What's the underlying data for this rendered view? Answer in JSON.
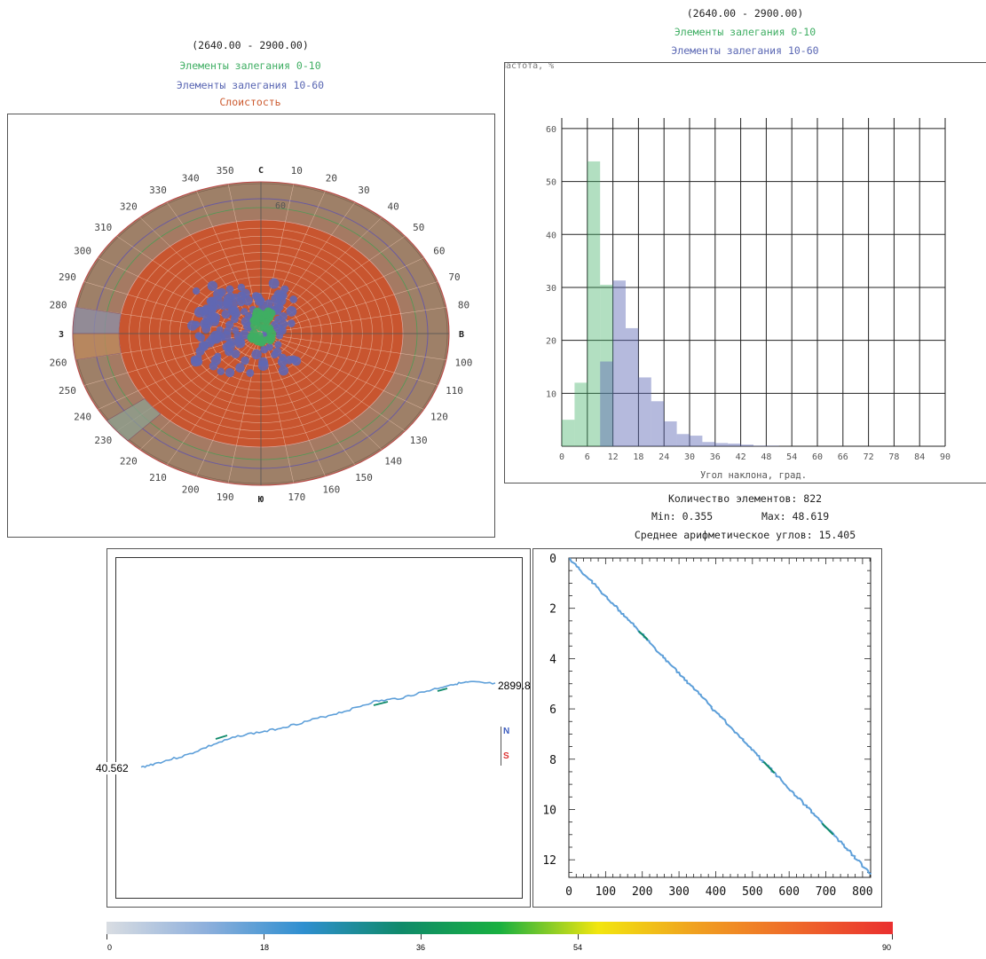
{
  "rose": {
    "range": "(2640.00 - 2900.00)",
    "legend": [
      {
        "label": "Элементы залегания 0-10",
        "color": "#3fae63"
      },
      {
        "label": "Элементы залегания 10-60",
        "color": "#5a67b3"
      },
      {
        "label": "Слоистость",
        "color": "#cc5a2f"
      }
    ],
    "compass": {
      "n": "С",
      "e": "В",
      "s": "Ю",
      "w": "З"
    },
    "dir_labels": [
      "10",
      "20",
      "30",
      "40",
      "50",
      "60",
      "70",
      "80",
      "100",
      "110",
      "120",
      "130",
      "140",
      "150",
      "160",
      "170",
      "190",
      "200",
      "210",
      "220",
      "230",
      "240",
      "250",
      "260",
      "280",
      "290",
      "300",
      "310",
      "320",
      "330",
      "340",
      "350"
    ],
    "inner_label": "60",
    "colors": {
      "outer": "#9e8068",
      "inner": "#c8552f",
      "grid": "#f1c9b4"
    }
  },
  "hist": {
    "range": "(2640.00 - 2900.00)",
    "legend": [
      {
        "label": "Элементы залегания 0-10",
        "color": "#3fae63"
      },
      {
        "label": "Элементы залегания 10-60",
        "color": "#5a67b3"
      }
    ],
    "ylabel_fragment": "Частота, %",
    "stats": {
      "count": "Количество элементов: 822",
      "min": "Min: 0.355",
      "max": "Max: 48.619",
      "mean": "Среднее арифметическое углов: 15.405"
    }
  },
  "scatter": {
    "left_label": "40.562",
    "right_label": "2899.8",
    "north": "N",
    "south": "S",
    "series_color": "#5d9fd9"
  },
  "colorbar": {
    "ticks": [
      "0",
      "18",
      "36",
      "54",
      "90"
    ],
    "stops": [
      "#d9dde2",
      "#8fb0dc",
      "#2f8fd0",
      "#0f8a6a",
      "#18b040",
      "#f2e60f",
      "#f0a020",
      "#ef6a2a",
      "#ea2f2f"
    ]
  },
  "chart_data": [
    {
      "type": "bar",
      "title": "(2640.00 - 2900.00)",
      "xlabel": "Угол наклона, град.",
      "ylabel": "Частота, %",
      "x_ticks": [
        "0",
        "6",
        "12",
        "18",
        "24",
        "30",
        "36",
        "42",
        "48",
        "54",
        "60",
        "66",
        "72",
        "78",
        "84",
        "90"
      ],
      "y_ticks": [
        "10",
        "20",
        "30",
        "40",
        "50",
        "60"
      ],
      "xlim": [
        0,
        90
      ],
      "ylim": [
        0,
        62
      ],
      "bin_width": 3,
      "series": [
        {
          "name": "Элементы залегания 0-10",
          "color": "#3fae63",
          "bins": [
            0,
            3,
            6,
            9
          ],
          "values": [
            5,
            12,
            53.8,
            30.5
          ]
        },
        {
          "name": "Элементы залегания 10-60",
          "color": "#5a67b3",
          "bins": [
            9,
            12,
            15,
            18,
            21,
            24,
            27,
            30,
            33,
            36,
            39,
            42,
            45,
            48
          ],
          "values": [
            16,
            31.3,
            22.3,
            13,
            8.5,
            4.7,
            2.3,
            2,
            0.8,
            0.6,
            0.5,
            0.3,
            0.1,
            0.1
          ]
        }
      ]
    },
    {
      "type": "scatter",
      "x_ticks": [
        "0",
        "100",
        "200",
        "300",
        "400",
        "500",
        "600",
        "700",
        "800"
      ],
      "y_ticks": [
        "0",
        "2",
        "4",
        "6",
        "8",
        "10",
        "12"
      ],
      "xlim": [
        0,
        822
      ],
      "ylim": [
        12.7,
        0
      ],
      "series": [
        {
          "name": "",
          "color": "#5d9fd9",
          "x": [
            0,
            822
          ],
          "y": [
            0,
            12.55
          ]
        }
      ]
    }
  ]
}
